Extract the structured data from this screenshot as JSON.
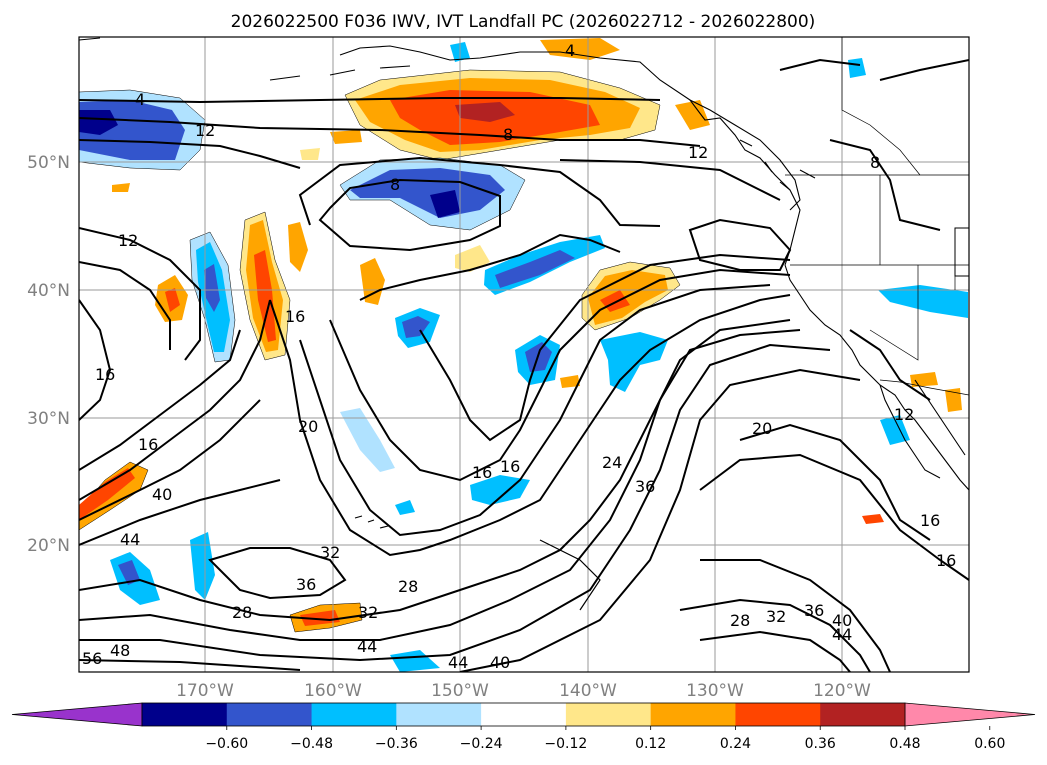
{
  "title": "2026022500 F036 IWV, IVT Landfall PC (2026022712 - 2026022800)",
  "lat_labels": [
    "50°N",
    "40°N",
    "30°N",
    "20°N"
  ],
  "lon_labels": [
    "170°W",
    "160°W",
    "150°W",
    "140°W",
    "130°W",
    "120°W"
  ],
  "iwv_contour_labels": [
    "4",
    "12",
    "8",
    "12",
    "8",
    "12",
    "16",
    "16",
    "16",
    "16",
    "40",
    "20",
    "20",
    "24",
    "36",
    "32",
    "36",
    "28",
    "28",
    "32",
    "44",
    "44",
    "40",
    "28",
    "32",
    "36",
    "40",
    "44",
    "16",
    "16",
    "4",
    "8",
    "12",
    "16",
    "56",
    "48",
    "44"
  ],
  "colorbar": {
    "ticks": [
      "−0.60",
      "−0.48",
      "−0.36",
      "−0.24",
      "−0.12",
      "0.12",
      "0.24",
      "0.36",
      "0.48",
      "0.60"
    ],
    "colors": [
      "#9933cc",
      "#00008b",
      "#3355cc",
      "#00bfff",
      "#b0e2ff",
      "#ffffff",
      "#ffe78a",
      "#ffa500",
      "#ff4500",
      "#b22222",
      "#ff88aa"
    ]
  },
  "colors": {
    "neg_strong": "#00008b",
    "neg_medium": "#3355cc",
    "neg_light": "#00bfff",
    "neg_faint": "#b0e2ff",
    "pos_faint": "#ffe78a",
    "pos_light": "#ffa500",
    "pos_medium": "#ff4500",
    "pos_strong": "#b22222"
  }
}
